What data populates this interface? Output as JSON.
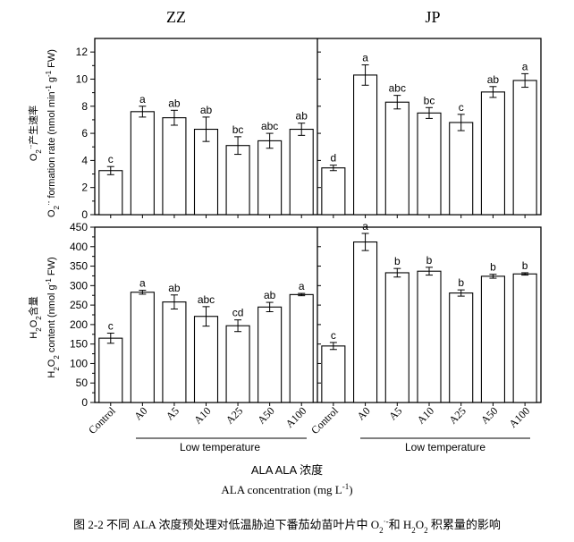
{
  "chart_data": {
    "type": "bar",
    "layout": "2x2 panel grid",
    "categories": [
      "Control",
      "A0",
      "A5",
      "A10",
      "A25",
      "A50",
      "A100"
    ],
    "x_group_label": "Low temperature",
    "columns": [
      "ZZ",
      "JP"
    ],
    "xlabel_cn": "ALA 浓度",
    "xlabel_main": "ALA concentration (mg L",
    "xlabel_sup": "-1",
    "xlabel_close": ")",
    "caption": {
      "prefix": "图 2-2  不同 ALA 浓度预处理对低温胁迫下番茄幼苗叶片中 O",
      "sub1": "2",
      "sup1": "·-",
      "mid": "和 H",
      "sub2": "2",
      "o": "O",
      "sub3": "2",
      "suffix": " 积累量的影响"
    },
    "rows": [
      {
        "ylabel_cn": "产生速率",
        "ylabel_en": "formation rate (nmol min",
        "ylabel_en2": " g",
        "ylabel_en3": " FW)",
        "ylim": [
          0,
          13
        ],
        "yticks": [
          0,
          2,
          4,
          6,
          8,
          10,
          12
        ],
        "panels": [
          {
            "column": "ZZ",
            "values": [
              3.25,
              7.6,
              7.15,
              6.3,
              5.1,
              5.45,
              6.3
            ],
            "errors": [
              0.3,
              0.4,
              0.55,
              0.9,
              0.65,
              0.55,
              0.45
            ],
            "letters": [
              "c",
              "a",
              "ab",
              "ab",
              "bc",
              "abc",
              "ab"
            ]
          },
          {
            "column": "JP",
            "values": [
              3.45,
              10.3,
              8.3,
              7.5,
              6.8,
              9.05,
              9.9
            ],
            "errors": [
              0.2,
              0.75,
              0.5,
              0.4,
              0.6,
              0.4,
              0.5
            ],
            "letters": [
              "d",
              "a",
              "abc",
              "bc",
              "c",
              "ab",
              "a"
            ]
          }
        ]
      },
      {
        "ylabel_cn": "含量",
        "ylabel_en": "content (nmol g",
        "ylabel_en2": " FW)",
        "ylim": [
          0,
          450
        ],
        "yticks": [
          0,
          50,
          100,
          150,
          200,
          250,
          300,
          350,
          400,
          450
        ],
        "panels": [
          {
            "column": "ZZ",
            "values": [
              165,
              283,
              258,
              221,
              197,
              245,
              277
            ],
            "errors": [
              13,
              5,
              18,
              25,
              15,
              12,
              3
            ],
            "letters": [
              "c",
              "a",
              "ab",
              "abc",
              "cd",
              "ab",
              "a"
            ]
          },
          {
            "column": "JP",
            "values": [
              145,
              412,
              333,
              337,
              281,
              324,
              330
            ],
            "errors": [
              9,
              22,
              11,
              10,
              8,
              5,
              3
            ],
            "letters": [
              "c",
              "a",
              "b",
              "b",
              "b",
              "b",
              "b"
            ]
          }
        ]
      }
    ]
  }
}
